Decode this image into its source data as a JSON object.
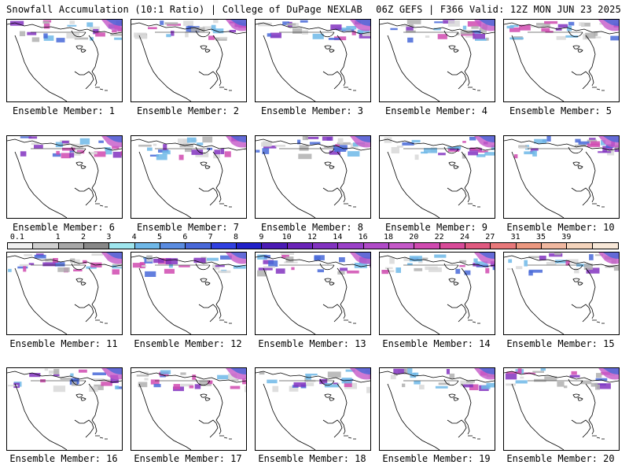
{
  "header": {
    "title_left": "Snowfall Accumulation (10:1 Ratio) | College of DuPage NEXLAB",
    "title_right": "06Z GEFS | F366 Valid: 12Z MON JUN 23 2025"
  },
  "panels": [
    {
      "label": "Ensemble Member: 1"
    },
    {
      "label": "Ensemble Member: 2"
    },
    {
      "label": "Ensemble Member: 3"
    },
    {
      "label": "Ensemble Member: 4"
    },
    {
      "label": "Ensemble Member: 5"
    },
    {
      "label": "Ensemble Member: 6"
    },
    {
      "label": "Ensemble Member: 7"
    },
    {
      "label": "Ensemble Member: 8"
    },
    {
      "label": "Ensemble Member: 9"
    },
    {
      "label": "Ensemble Member: 10"
    },
    {
      "label": "Ensemble Member: 11"
    },
    {
      "label": "Ensemble Member: 12"
    },
    {
      "label": "Ensemble Member: 13"
    },
    {
      "label": "Ensemble Member: 14"
    },
    {
      "label": "Ensemble Member: 15"
    },
    {
      "label": "Ensemble Member: 16"
    },
    {
      "label": "Ensemble Member: 17"
    },
    {
      "label": "Ensemble Member: 18"
    },
    {
      "label": "Ensemble Member: 19"
    },
    {
      "label": "Ensemble Member: 20"
    }
  ],
  "legend": {
    "labels": [
      "0.1",
      "1",
      "2",
      "3",
      "4",
      "5",
      "6",
      "7",
      "8",
      "9",
      "10",
      "12",
      "14",
      "16",
      "18",
      "20",
      "22",
      "24",
      "27",
      "31",
      "35",
      "39"
    ],
    "colors": [
      "#f0f0f0",
      "#d0d0d0",
      "#a8a8a8",
      "#888888",
      "#9fe6ee",
      "#6fb8e8",
      "#5a8ce0",
      "#4868d8",
      "#3040e0",
      "#2020c8",
      "#4a1ab4",
      "#6a24b8",
      "#8232c0",
      "#9a40c8",
      "#b04ac8",
      "#c458c8",
      "#d04ab0",
      "#d84a98",
      "#e05a80",
      "#e8787a",
      "#eb9880",
      "#f0b8a0",
      "#f4d4bc",
      "#f8e8d8"
    ]
  }
}
